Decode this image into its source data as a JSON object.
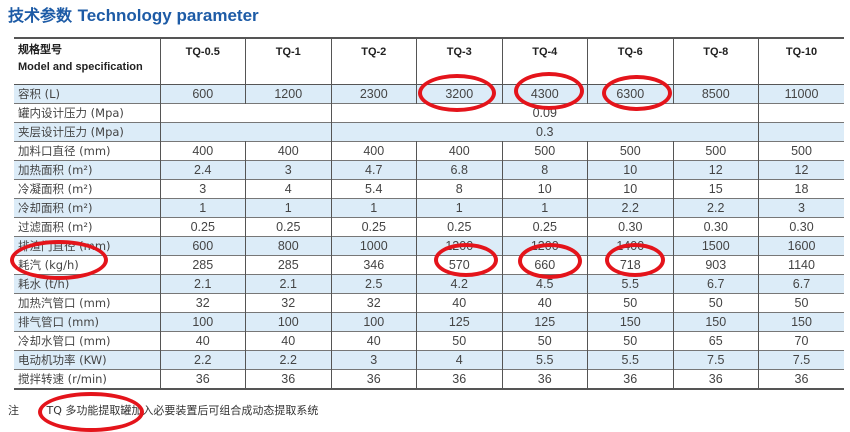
{
  "title_cn": "技术参数",
  "title_en": "Technology parameter",
  "header": {
    "label_cn": "规格型号",
    "label_en": "Model and specification",
    "models": [
      "TQ-0.5",
      "TQ-1",
      "TQ-2",
      "TQ-3",
      "TQ-4",
      "TQ-6",
      "TQ-8",
      "TQ-10"
    ]
  },
  "rows": [
    {
      "label": "容积 (L)",
      "values": [
        "600",
        "1200",
        "2300",
        "3200",
        "4300",
        "6300",
        "8500",
        "11000"
      ]
    },
    {
      "label": "罐内设计压力 (Mpa)",
      "merged": "0.09"
    },
    {
      "label": "夹层设计压力 (Mpa)",
      "merged": "0.3"
    },
    {
      "label": "加料口直径 (mm)",
      "values": [
        "400",
        "400",
        "400",
        "400",
        "500",
        "500",
        "500",
        "500"
      ]
    },
    {
      "label": "加热面积 (m²)",
      "values": [
        "2.4",
        "3",
        "4.7",
        "6.8",
        "8",
        "10",
        "12",
        "12"
      ]
    },
    {
      "label": "冷凝面积 (m²)",
      "values": [
        "3",
        "4",
        "5.4",
        "8",
        "10",
        "10",
        "15",
        "18"
      ]
    },
    {
      "label": "冷却面积 (m²)",
      "values": [
        "1",
        "1",
        "1",
        "1",
        "1",
        "2.2",
        "2.2",
        "3"
      ]
    },
    {
      "label": "过滤面积 (m²)",
      "values": [
        "0.25",
        "0.25",
        "0.25",
        "0.25",
        "0.25",
        "0.30",
        "0.30",
        "0.30"
      ]
    },
    {
      "label": "排渣门直径 (mm)",
      "values": [
        "600",
        "800",
        "1000",
        "1200",
        "1200",
        "1400",
        "1500",
        "1600"
      ]
    },
    {
      "label": "耗汽 (kg/h)",
      "values": [
        "285",
        "285",
        "346",
        "570",
        "660",
        "718",
        "903",
        "1140"
      ]
    },
    {
      "label": "耗水 (t/h)",
      "values": [
        "2.1",
        "2.1",
        "2.5",
        "4.2",
        "4.5",
        "5.5",
        "6.7",
        "6.7"
      ]
    },
    {
      "label": "加热汽管口 (mm)",
      "values": [
        "32",
        "32",
        "32",
        "40",
        "40",
        "50",
        "50",
        "50"
      ]
    },
    {
      "label": "排气管口 (mm)",
      "values": [
        "100",
        "100",
        "100",
        "125",
        "125",
        "150",
        "150",
        "150"
      ]
    },
    {
      "label": "冷却水管口 (mm)",
      "values": [
        "40",
        "40",
        "40",
        "50",
        "50",
        "50",
        "65",
        "70"
      ]
    },
    {
      "label": "电动机功率 (KW)",
      "values": [
        "2.2",
        "2.2",
        "3",
        "4",
        "5.5",
        "5.5",
        "7.5",
        "7.5"
      ]
    },
    {
      "label": "搅拌转速 (r/min)",
      "values": [
        "36",
        "36",
        "36",
        "36",
        "36",
        "36",
        "36",
        "36"
      ]
    }
  ],
  "note": {
    "prefix": "注",
    "text": "TQ 多功能提取罐加入必要装置后可组合成动态提取系统"
  },
  "colors": {
    "title": "#1d5ba6",
    "row_blue": "#dcecf8",
    "annotation": "#e4141b"
  }
}
